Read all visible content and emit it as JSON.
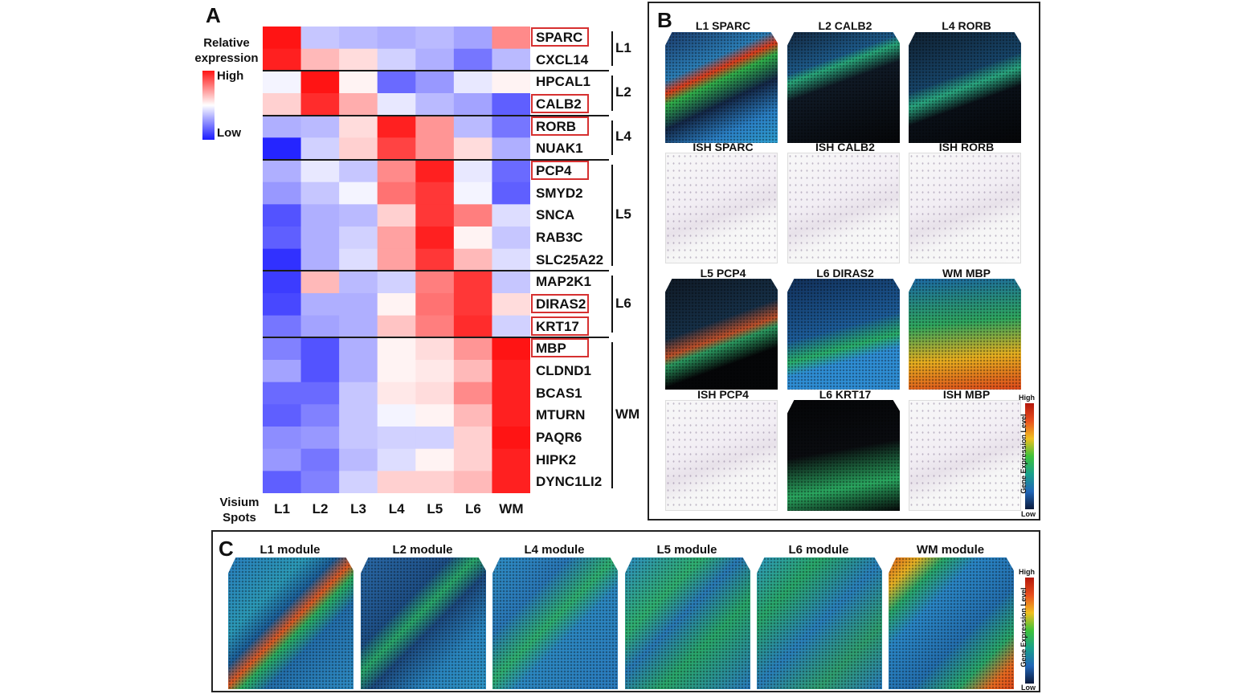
{
  "panels": {
    "a": "A",
    "b": "B",
    "c": "C"
  },
  "heatmap": {
    "legend_title_1": "Relative",
    "legend_title_2": "expression",
    "legend_high": "High",
    "legend_low": "Low",
    "corner_label_1": "Visium",
    "corner_label_2": "Spots",
    "boxed_genes": [
      "SPARC",
      "CALB2",
      "RORB",
      "PCP4",
      "DIRAS2",
      "KRT17",
      "MBP"
    ],
    "groups": [
      {
        "label": "L1",
        "rows": [
          0,
          1
        ]
      },
      {
        "label": "L2",
        "rows": [
          2,
          3
        ]
      },
      {
        "label": "L4",
        "rows": [
          4,
          5
        ]
      },
      {
        "label": "L5",
        "rows": [
          6,
          10
        ]
      },
      {
        "label": "L6",
        "rows": [
          11,
          13
        ]
      },
      {
        "label": "WM",
        "rows": [
          14,
          20
        ]
      }
    ]
  },
  "chart_data": {
    "type": "heatmap",
    "columns": [
      "L1",
      "L2",
      "L3",
      "L4",
      "L5",
      "L6",
      "WM"
    ],
    "rows": [
      "SPARC",
      "CXCL14",
      "HPCAL1",
      "CALB2",
      "RORB",
      "NUAK1",
      "PCP4",
      "SMYD2",
      "SNCA",
      "RAB3C",
      "SLC25A22",
      "MAP2K1",
      "DIRAS2",
      "KRT17",
      "MBP",
      "CLDND1",
      "BCAS1",
      "MTURN",
      "PAQR6",
      "HIPK2",
      "DYNC1LI2"
    ],
    "values": [
      [
        1.0,
        -0.25,
        -0.3,
        -0.35,
        -0.3,
        -0.4,
        0.5
      ],
      [
        0.95,
        0.3,
        0.15,
        -0.2,
        -0.35,
        -0.6,
        -0.3
      ],
      [
        -0.05,
        1.0,
        0.05,
        -0.65,
        -0.45,
        -0.1,
        0.05
      ],
      [
        0.2,
        0.9,
        0.35,
        -0.1,
        -0.3,
        -0.4,
        -0.7
      ],
      [
        -0.35,
        -0.3,
        0.15,
        0.95,
        0.45,
        -0.3,
        -0.6
      ],
      [
        -0.95,
        -0.2,
        0.2,
        0.8,
        0.45,
        0.15,
        -0.35
      ],
      [
        -0.35,
        -0.1,
        -0.25,
        0.5,
        0.95,
        -0.1,
        -0.65
      ],
      [
        -0.45,
        -0.25,
        -0.05,
        0.6,
        0.85,
        -0.05,
        -0.7
      ],
      [
        -0.75,
        -0.35,
        -0.3,
        0.2,
        0.85,
        0.55,
        -0.15
      ],
      [
        -0.7,
        -0.35,
        -0.2,
        0.4,
        0.95,
        0.05,
        -0.25
      ],
      [
        -0.9,
        -0.35,
        -0.15,
        0.4,
        0.85,
        0.3,
        -0.15
      ],
      [
        -0.85,
        0.3,
        -0.3,
        -0.2,
        0.55,
        0.85,
        -0.25
      ],
      [
        -0.8,
        -0.35,
        -0.35,
        0.05,
        0.6,
        0.85,
        0.15
      ],
      [
        -0.6,
        -0.4,
        -0.35,
        0.25,
        0.55,
        0.9,
        -0.2
      ],
      [
        -0.55,
        -0.75,
        -0.35,
        0.05,
        0.15,
        0.45,
        1.0
      ],
      [
        -0.4,
        -0.75,
        -0.35,
        0.05,
        0.1,
        0.3,
        0.95
      ],
      [
        -0.65,
        -0.65,
        -0.25,
        0.1,
        0.15,
        0.5,
        0.95
      ],
      [
        -0.7,
        -0.55,
        -0.25,
        -0.05,
        0.05,
        0.3,
        0.95
      ],
      [
        -0.5,
        -0.45,
        -0.25,
        -0.2,
        -0.2,
        0.2,
        1.0
      ],
      [
        -0.45,
        -0.6,
        -0.3,
        -0.15,
        0.05,
        0.2,
        0.95
      ],
      [
        -0.7,
        -0.55,
        -0.2,
        0.2,
        0.2,
        0.3,
        0.95
      ]
    ],
    "scale": [
      "Low",
      "High"
    ],
    "ylabel": "Relative expression"
  },
  "panel_b": {
    "tiles": [
      {
        "title": "L1 SPARC",
        "kind": "spot",
        "pattern": "l1"
      },
      {
        "title": "L2 CALB2",
        "kind": "spot",
        "pattern": "l2"
      },
      {
        "title": "L4 RORB",
        "kind": "spot",
        "pattern": "l4"
      },
      {
        "title": "ISH SPARC",
        "kind": "ish"
      },
      {
        "title": "ISH CALB2",
        "kind": "ish"
      },
      {
        "title": "ISH RORB",
        "kind": "ish"
      },
      {
        "title": "L5 PCP4",
        "kind": "spot",
        "pattern": "l5"
      },
      {
        "title": "L6 DIRAS2",
        "kind": "spot",
        "pattern": "l6"
      },
      {
        "title": "WM MBP",
        "kind": "spot",
        "pattern": "wm"
      },
      {
        "title": "ISH PCP4",
        "kind": "ish"
      },
      {
        "title": "L6 KRT17",
        "kind": "spot",
        "pattern": "l6b"
      },
      {
        "title": "ISH MBP",
        "kind": "ish"
      }
    ],
    "colorbar_title": "Gene Expression Level",
    "colorbar_high": "High",
    "colorbar_low": "Low"
  },
  "panel_c": {
    "modules": [
      "L1 module",
      "L2 module",
      "L4 module",
      "L5 module",
      "L6 module",
      "WM module"
    ],
    "colorbar_title": "Gene Expression Level",
    "colorbar_high": "High",
    "colorbar_low": "Low"
  },
  "colors": {
    "high": "#ff1414",
    "mid": "#ffffff",
    "low": "#1a1aff",
    "box": "#d63030"
  }
}
